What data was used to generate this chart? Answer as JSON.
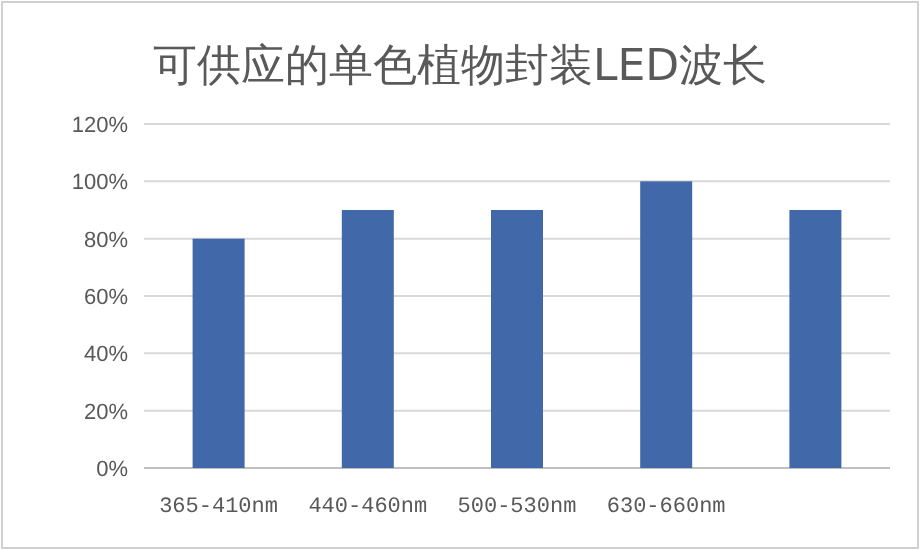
{
  "chart_data": {
    "type": "bar",
    "title": "可供应的单色植物封装LED波长",
    "categories": [
      "365-410nm",
      "440-460nm",
      "500-530nm",
      "630-660nm",
      null
    ],
    "values": [
      80,
      90,
      90,
      100,
      90
    ],
    "color": "#4169aa",
    "ylim": [
      0,
      120
    ],
    "yticks": [
      {
        "value": 0,
        "label": "0%"
      },
      {
        "value": 20,
        "label": "20%"
      },
      {
        "value": 40,
        "label": "40%"
      },
      {
        "value": 60,
        "label": "60%"
      },
      {
        "value": 80,
        "label": "80%"
      },
      {
        "value": 100,
        "label": "100%"
      },
      {
        "value": 120,
        "label": "120%"
      }
    ],
    "grid": "y"
  }
}
